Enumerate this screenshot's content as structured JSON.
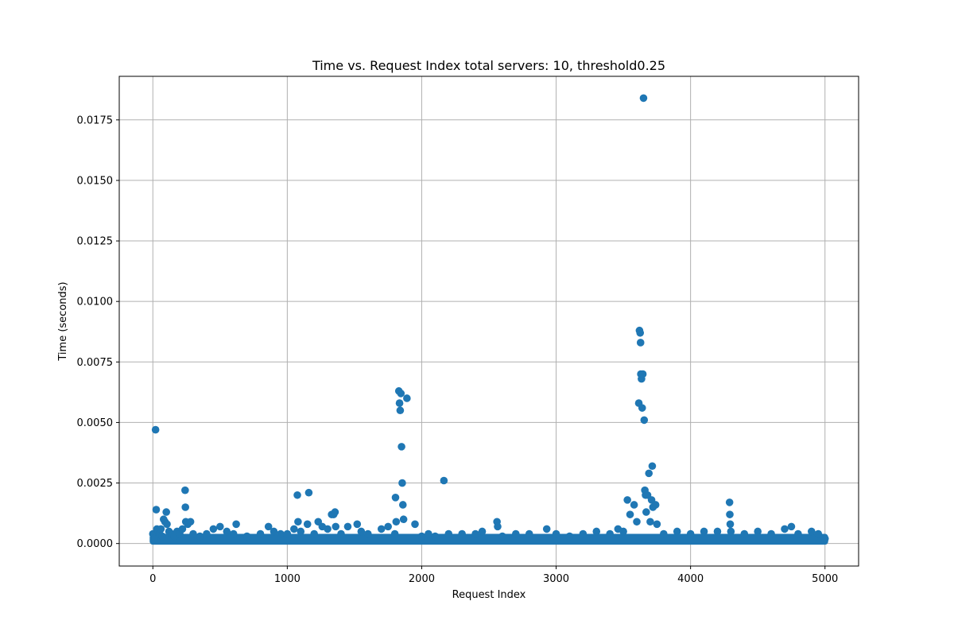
{
  "chart_data": {
    "type": "scatter",
    "title": "Time vs. Request Index total servers: 10, threshold0.25",
    "xlabel": "Request Index",
    "ylabel": "Time (seconds)",
    "xlim": [
      -250,
      5250
    ],
    "ylim": [
      -0.00093,
      0.0193
    ],
    "grid": true,
    "marker_color": "#1f77b4",
    "xticks": [
      0,
      1000,
      2000,
      3000,
      4000,
      5000
    ],
    "xtick_labels": [
      "0",
      "1000",
      "2000",
      "3000",
      "4000",
      "5000"
    ],
    "yticks": [
      0.0,
      0.0025,
      0.005,
      0.0075,
      0.01,
      0.0125,
      0.015,
      0.0175
    ],
    "ytick_labels": [
      "0.0000",
      "0.0025",
      "0.0050",
      "0.0075",
      "0.0100",
      "0.0125",
      "0.0150",
      "0.0175"
    ],
    "series": [
      {
        "points": [
          [
            0,
            0.0004
          ],
          [
            10,
            0.0002
          ],
          [
            20,
            0.0047
          ],
          [
            25,
            0.0014
          ],
          [
            30,
            0.0006
          ],
          [
            40,
            0.0005
          ],
          [
            50,
            0.0004
          ],
          [
            60,
            0.0006
          ],
          [
            70,
            0.0003
          ],
          [
            80,
            0.001
          ],
          [
            90,
            0.0009
          ],
          [
            100,
            0.0013
          ],
          [
            105,
            0.0008
          ],
          [
            120,
            0.0005
          ],
          [
            140,
            0.0004
          ],
          [
            160,
            0.0003
          ],
          [
            180,
            0.0005
          ],
          [
            200,
            0.0004
          ],
          [
            220,
            0.0006
          ],
          [
            240,
            0.0022
          ],
          [
            242,
            0.0015
          ],
          [
            245,
            0.0009
          ],
          [
            260,
            0.0008
          ],
          [
            280,
            0.0009
          ],
          [
            300,
            0.0004
          ],
          [
            350,
            0.0003
          ],
          [
            400,
            0.0004
          ],
          [
            450,
            0.0006
          ],
          [
            500,
            0.0007
          ],
          [
            550,
            0.0005
          ],
          [
            600,
            0.0004
          ],
          [
            620,
            0.0008
          ],
          [
            700,
            0.0003
          ],
          [
            800,
            0.0004
          ],
          [
            860,
            0.0007
          ],
          [
            900,
            0.0005
          ],
          [
            950,
            0.0004
          ],
          [
            1000,
            0.0004
          ],
          [
            1050,
            0.0006
          ],
          [
            1075,
            0.002
          ],
          [
            1080,
            0.0009
          ],
          [
            1100,
            0.0005
          ],
          [
            1150,
            0.0008
          ],
          [
            1160,
            0.0021
          ],
          [
            1200,
            0.0004
          ],
          [
            1230,
            0.0009
          ],
          [
            1260,
            0.0007
          ],
          [
            1300,
            0.0006
          ],
          [
            1330,
            0.0012
          ],
          [
            1345,
            0.0012
          ],
          [
            1355,
            0.0013
          ],
          [
            1360,
            0.0007
          ],
          [
            1400,
            0.0004
          ],
          [
            1450,
            0.0007
          ],
          [
            1520,
            0.0008
          ],
          [
            1550,
            0.0005
          ],
          [
            1600,
            0.0004
          ],
          [
            1700,
            0.0006
          ],
          [
            1750,
            0.0007
          ],
          [
            1800,
            0.0004
          ],
          [
            1805,
            0.0019
          ],
          [
            1810,
            0.0009
          ],
          [
            1830,
            0.0063
          ],
          [
            1835,
            0.0058
          ],
          [
            1840,
            0.0055
          ],
          [
            1845,
            0.0062
          ],
          [
            1850,
            0.004
          ],
          [
            1855,
            0.0025
          ],
          [
            1860,
            0.0016
          ],
          [
            1865,
            0.001
          ],
          [
            1890,
            0.006
          ],
          [
            1950,
            0.0008
          ],
          [
            2000,
            0.0003
          ],
          [
            2050,
            0.0004
          ],
          [
            2100,
            0.0003
          ],
          [
            2165,
            0.0026
          ],
          [
            2200,
            0.0004
          ],
          [
            2300,
            0.0004
          ],
          [
            2400,
            0.0004
          ],
          [
            2450,
            0.0005
          ],
          [
            2560,
            0.0009
          ],
          [
            2565,
            0.0007
          ],
          [
            2600,
            0.0003
          ],
          [
            2700,
            0.0004
          ],
          [
            2800,
            0.0004
          ],
          [
            2930,
            0.0006
          ],
          [
            3000,
            0.0004
          ],
          [
            3100,
            0.0003
          ],
          [
            3200,
            0.0004
          ],
          [
            3300,
            0.0005
          ],
          [
            3400,
            0.0004
          ],
          [
            3460,
            0.0006
          ],
          [
            3500,
            0.0005
          ],
          [
            3530,
            0.0018
          ],
          [
            3550,
            0.0012
          ],
          [
            3580,
            0.0016
          ],
          [
            3600,
            0.0009
          ],
          [
            3615,
            0.0058
          ],
          [
            3620,
            0.0088
          ],
          [
            3625,
            0.0087
          ],
          [
            3628,
            0.0083
          ],
          [
            3630,
            0.007
          ],
          [
            3635,
            0.0068
          ],
          [
            3640,
            0.0056
          ],
          [
            3645,
            0.007
          ],
          [
            3650,
            0.0184
          ],
          [
            3655,
            0.0051
          ],
          [
            3660,
            0.0022
          ],
          [
            3665,
            0.002
          ],
          [
            3670,
            0.0013
          ],
          [
            3680,
            0.002
          ],
          [
            3690,
            0.0029
          ],
          [
            3700,
            0.0009
          ],
          [
            3710,
            0.0018
          ],
          [
            3715,
            0.0032
          ],
          [
            3720,
            0.0015
          ],
          [
            3740,
            0.0016
          ],
          [
            3750,
            0.0008
          ],
          [
            3800,
            0.0004
          ],
          [
            3900,
            0.0005
          ],
          [
            4000,
            0.0004
          ],
          [
            4100,
            0.0005
          ],
          [
            4200,
            0.0005
          ],
          [
            4290,
            0.0017
          ],
          [
            4292,
            0.0012
          ],
          [
            4295,
            0.0008
          ],
          [
            4300,
            0.0005
          ],
          [
            4400,
            0.0004
          ],
          [
            4500,
            0.0005
          ],
          [
            4600,
            0.0004
          ],
          [
            4700,
            0.0006
          ],
          [
            4750,
            0.0007
          ],
          [
            4800,
            0.0004
          ],
          [
            4900,
            0.0005
          ],
          [
            4950,
            0.0004
          ],
          [
            5000,
            0.0002
          ]
        ]
      }
    ]
  }
}
